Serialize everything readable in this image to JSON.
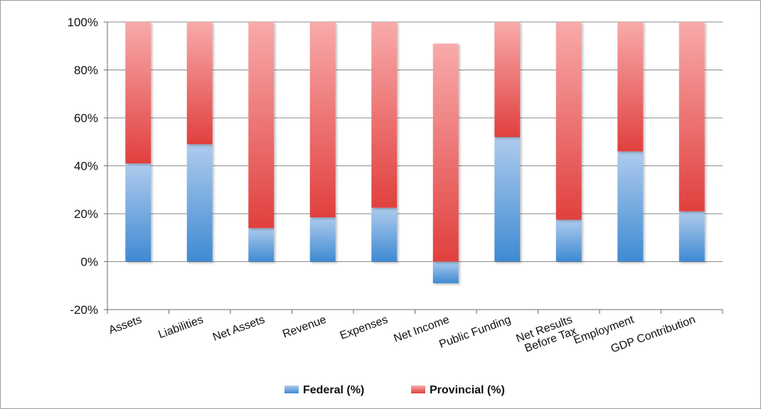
{
  "chart_data": {
    "type": "bar",
    "stacked": true,
    "categories": [
      "Assets",
      "Liabilities",
      "Net Assets",
      "Revenue",
      "Expenses",
      "Net Income",
      "Public Funding",
      "Net Results Before Tax",
      "Employment",
      "GDP Contribution"
    ],
    "category_lines": [
      [
        "Assets"
      ],
      [
        "Liabilities"
      ],
      [
        "Net Assets"
      ],
      [
        "Revenue"
      ],
      [
        "Expenses"
      ],
      [
        "Net Income"
      ],
      [
        "Public Funding"
      ],
      [
        "Net Results",
        "Before Tax"
      ],
      [
        "Employment"
      ],
      [
        "GDP Contribution"
      ]
    ],
    "series": [
      {
        "name": "Federal (%)",
        "values": [
          41,
          49,
          14,
          18.5,
          22.5,
          -9,
          52,
          17.5,
          46,
          21
        ],
        "color_top": "#aecbed",
        "color_bottom": "#3e8ad2"
      },
      {
        "name": "Provincial (%)",
        "values": [
          59,
          51,
          86,
          81.5,
          77.5,
          91,
          48,
          82.5,
          54,
          79
        ],
        "color_top": "#f8aaaa",
        "color_bottom": "#e0403e"
      }
    ],
    "ylim": [
      -20,
      100
    ],
    "yticks": [
      -20,
      0,
      20,
      40,
      60,
      80,
      100
    ],
    "ytick_labels": [
      "-20%",
      "0%",
      "20%",
      "40%",
      "60%",
      "80%",
      "100%"
    ],
    "grid": true,
    "legend": "bottom"
  }
}
